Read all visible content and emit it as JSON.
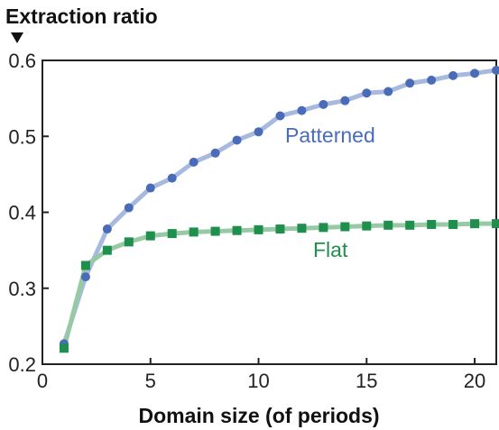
{
  "chart_data": {
    "type": "line",
    "title": "",
    "ylabel": "Extraction ratio",
    "xlabel": "Domain size (of periods)",
    "xlim": [
      0,
      21
    ],
    "ylim": [
      0.2,
      0.6
    ],
    "xticks": [
      0,
      5,
      10,
      15,
      20
    ],
    "xtick_labels": [
      "0",
      "5",
      "10",
      "15",
      "20"
    ],
    "yticks": [
      0.2,
      0.3,
      0.4,
      0.5,
      0.6
    ],
    "ytick_labels": [
      "0.2",
      "0.3",
      "0.4",
      "0.5",
      "0.6"
    ],
    "grid": false,
    "legend": "inline",
    "x": [
      1,
      2,
      3,
      4,
      5,
      6,
      7,
      8,
      9,
      10,
      11,
      12,
      13,
      14,
      15,
      16,
      17,
      18,
      19,
      20,
      21
    ],
    "series": [
      {
        "name": "Patterned",
        "marker": "circle",
        "color": "#4a6cb8",
        "line_color": "#a7b9de",
        "values": [
          0.227,
          0.315,
          0.378,
          0.406,
          0.432,
          0.445,
          0.466,
          0.478,
          0.495,
          0.506,
          0.527,
          0.534,
          0.542,
          0.547,
          0.557,
          0.559,
          0.57,
          0.574,
          0.58,
          0.583,
          0.587
        ]
      },
      {
        "name": "Flat",
        "marker": "square",
        "color": "#1f8f4e",
        "line_color": "#97c9a4",
        "values": [
          0.221,
          0.33,
          0.35,
          0.361,
          0.369,
          0.372,
          0.374,
          0.375,
          0.376,
          0.377,
          0.378,
          0.379,
          0.38,
          0.381,
          0.382,
          0.383,
          0.383,
          0.384,
          0.384,
          0.385,
          0.385
        ]
      }
    ]
  }
}
